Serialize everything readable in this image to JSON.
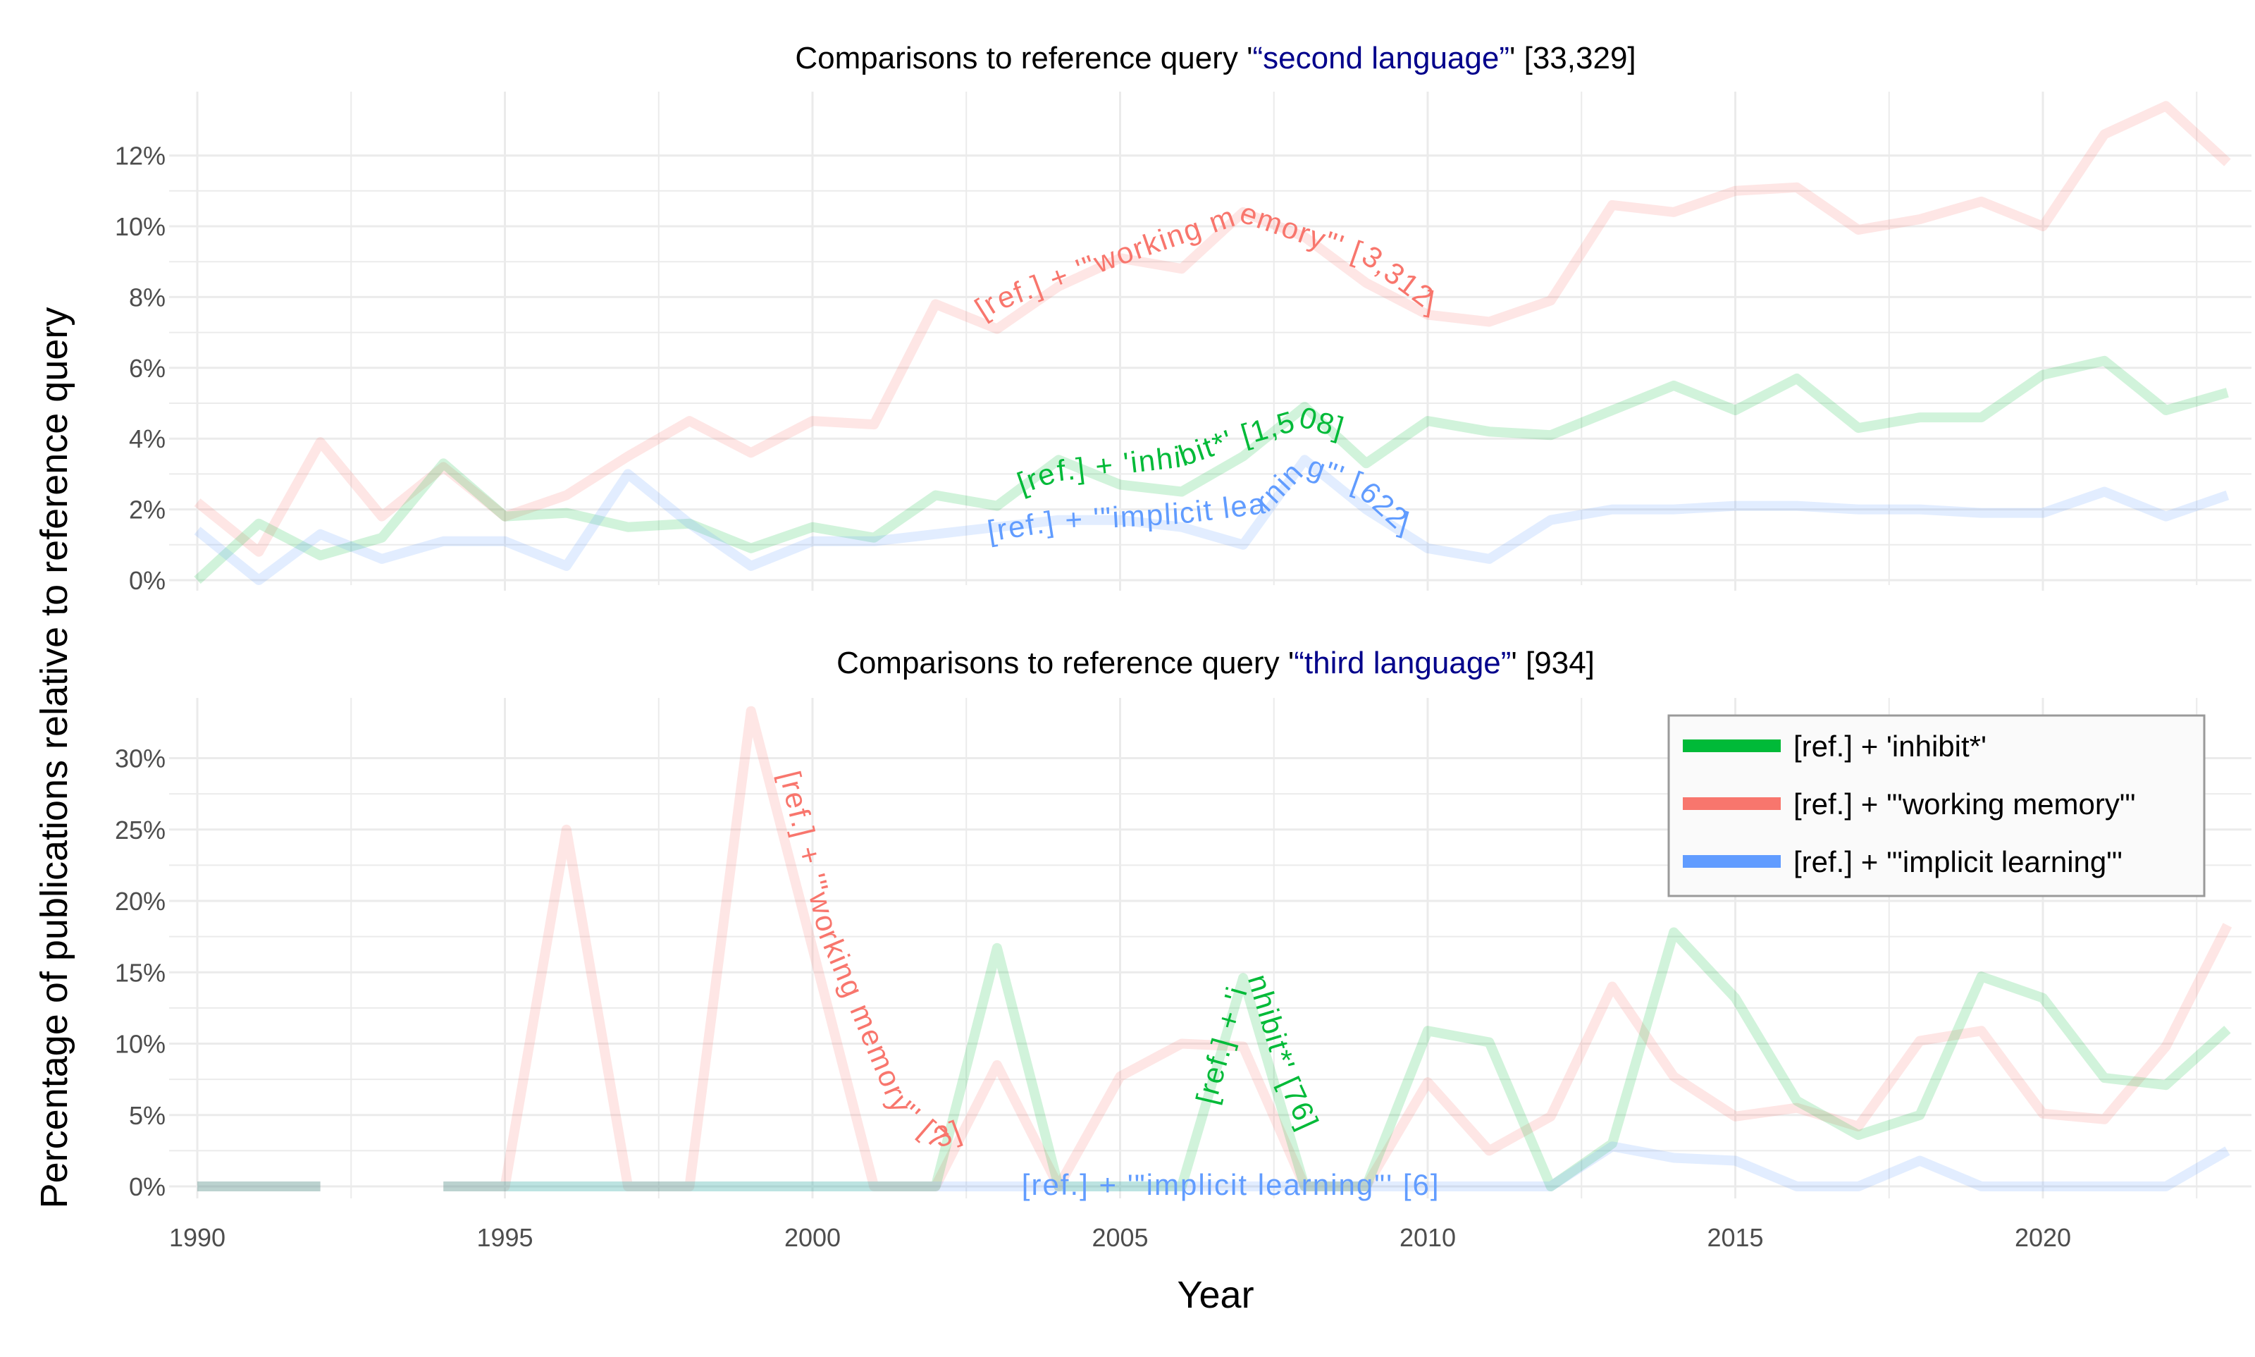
{
  "chart_data": {
    "type": "line",
    "xlabel": "Year",
    "ylabel": "Percentage of publications relative to reference query",
    "x_ticks": [
      "1990",
      "1995",
      "2000",
      "2005",
      "2010",
      "2015",
      "2020"
    ],
    "xlim": [
      1990,
      2023
    ],
    "legend_position": "top-right",
    "colors": {
      "inhibit": "#00BA38",
      "working_memory": "#F8766D",
      "implicit_learning": "#619CFF",
      "title_highlight": "#00008B"
    },
    "legend": [
      {
        "key": "inhibit",
        "label": "[ref.] + 'inhibit*'"
      },
      {
        "key": "working_memory",
        "label": "[ref.] + '\"working memory\"'"
      },
      {
        "key": "implicit_learning",
        "label": "[ref.] + '\"implicit learning\"'"
      }
    ],
    "panels": [
      {
        "title_prefix": "Comparisons to reference query '",
        "title_highlight": "“second language”",
        "title_suffix": "' [33,329]",
        "ylim": [
          0,
          13.5
        ],
        "y_ticks": [
          0,
          2,
          4,
          6,
          8,
          10,
          12
        ],
        "y_tick_labels": [
          "0%",
          "2%",
          "4%",
          "6%",
          "8%",
          "10%",
          "12%"
        ],
        "series": [
          {
            "key": "working_memory",
            "points": [
              [
                1990,
                2.2
              ],
              [
                1991,
                0.8
              ],
              [
                1992,
                3.9
              ],
              [
                1993,
                1.8
              ],
              [
                1994,
                3.2
              ],
              [
                1995,
                1.8
              ],
              [
                1996,
                2.4
              ],
              [
                1997,
                3.5
              ],
              [
                1998,
                4.5
              ],
              [
                1999,
                3.6
              ],
              [
                2000,
                4.5
              ],
              [
                2001,
                4.4
              ],
              [
                2002,
                7.8
              ],
              [
                2003,
                7.1
              ],
              [
                2004,
                8.3
              ],
              [
                2005,
                9.1
              ],
              [
                2006,
                8.8
              ],
              [
                2007,
                10.4
              ],
              [
                2008,
                9.7
              ],
              [
                2009,
                8.4
              ],
              [
                2010,
                7.5
              ],
              [
                2011,
                7.3
              ],
              [
                2012,
                7.9
              ],
              [
                2013,
                10.6
              ],
              [
                2014,
                10.4
              ],
              [
                2015,
                11.0
              ],
              [
                2016,
                11.1
              ],
              [
                2017,
                9.9
              ],
              [
                2018,
                10.2
              ],
              [
                2019,
                10.7
              ],
              [
                2020,
                10.0
              ],
              [
                2021,
                12.6
              ],
              [
                2022,
                13.4
              ],
              [
                2023,
                11.8
              ]
            ]
          },
          {
            "key": "inhibit",
            "points": [
              [
                1990,
                0.0
              ],
              [
                1991,
                1.6
              ],
              [
                1992,
                0.7
              ],
              [
                1993,
                1.2
              ],
              [
                1994,
                3.3
              ],
              [
                1995,
                1.8
              ],
              [
                1996,
                1.9
              ],
              [
                1997,
                1.5
              ],
              [
                1998,
                1.6
              ],
              [
                1999,
                0.9
              ],
              [
                2000,
                1.5
              ],
              [
                2001,
                1.2
              ],
              [
                2002,
                2.4
              ],
              [
                2003,
                2.1
              ],
              [
                2004,
                3.4
              ],
              [
                2005,
                2.7
              ],
              [
                2006,
                2.5
              ],
              [
                2007,
                3.5
              ],
              [
                2008,
                4.9
              ],
              [
                2009,
                3.3
              ],
              [
                2010,
                4.5
              ],
              [
                2011,
                4.2
              ],
              [
                2012,
                4.1
              ],
              [
                2013,
                4.8
              ],
              [
                2014,
                5.5
              ],
              [
                2015,
                4.8
              ],
              [
                2016,
                5.7
              ],
              [
                2017,
                4.3
              ],
              [
                2018,
                4.6
              ],
              [
                2019,
                4.6
              ],
              [
                2020,
                5.8
              ],
              [
                2021,
                6.2
              ],
              [
                2022,
                4.8
              ],
              [
                2023,
                5.3
              ]
            ]
          },
          {
            "key": "implicit_learning",
            "points": [
              [
                1990,
                1.4
              ],
              [
                1991,
                0.0
              ],
              [
                1992,
                1.3
              ],
              [
                1993,
                0.6
              ],
              [
                1994,
                1.1
              ],
              [
                1995,
                1.1
              ],
              [
                1996,
                0.4
              ],
              [
                1997,
                3.0
              ],
              [
                1998,
                1.6
              ],
              [
                1999,
                0.4
              ],
              [
                2000,
                1.1
              ],
              [
                2001,
                1.1
              ],
              [
                2002,
                1.3
              ],
              [
                2003,
                1.5
              ],
              [
                2004,
                1.7
              ],
              [
                2005,
                1.7
              ],
              [
                2006,
                1.5
              ],
              [
                2007,
                1.0
              ],
              [
                2008,
                3.4
              ],
              [
                2009,
                2.0
              ],
              [
                2010,
                0.9
              ],
              [
                2011,
                0.6
              ],
              [
                2012,
                1.7
              ],
              [
                2013,
                2.0
              ],
              [
                2014,
                2.0
              ],
              [
                2015,
                2.1
              ],
              [
                2016,
                2.1
              ],
              [
                2017,
                2.0
              ],
              [
                2018,
                2.0
              ],
              [
                2019,
                1.9
              ],
              [
                2020,
                1.9
              ],
              [
                2021,
                2.5
              ],
              [
                2022,
                1.8
              ],
              [
                2023,
                2.4
              ]
            ]
          }
        ],
        "labels": [
          {
            "key": "working_memory",
            "text": "[ref.] + '\"working memory\"' [3,312]"
          },
          {
            "key": "inhibit",
            "text": "[ref.] + 'inhibit*' [1,508]"
          },
          {
            "key": "implicit_learning",
            "text": "[ref.] + '\"implicit learning\"' [622]"
          }
        ]
      },
      {
        "title_prefix": "Comparisons to reference query '",
        "title_highlight": "“third language”",
        "title_suffix": "' [934]",
        "ylim": [
          -0.8,
          33.5
        ],
        "y_ticks": [
          0,
          5,
          10,
          15,
          20,
          25,
          30
        ],
        "y_tick_labels": [
          "0%",
          "5%",
          "10%",
          "15%",
          "20%",
          "25%",
          "30%"
        ],
        "series": [
          {
            "key": "working_memory",
            "segments": [
              [
                [
                  1990,
                  0
                ],
                [
                  1991,
                  0
                ],
                [
                  1992,
                  0
                ]
              ],
              [
                [
                  1994,
                  0
                ],
                [
                  1995,
                  0
                ],
                [
                  1996,
                  25.0
                ],
                [
                  1997,
                  0
                ],
                [
                  1998,
                  0
                ],
                [
                  1999,
                  33.3
                ],
                [
                  2000,
                  16.7
                ],
                [
                  2001,
                  0
                ],
                [
                  2002,
                  0
                ],
                [
                  2003,
                  8.5
                ],
                [
                  2004,
                  0
                ],
                [
                  2005,
                  7.7
                ],
                [
                  2006,
                  10.0
                ],
                [
                  2007,
                  9.8
                ],
                [
                  2008,
                  0
                ],
                [
                  2009,
                  0
                ],
                [
                  2010,
                  7.3
                ],
                [
                  2011,
                  2.5
                ],
                [
                  2012,
                  4.9
                ],
                [
                  2013,
                  14.0
                ],
                [
                  2014,
                  7.7
                ],
                [
                  2015,
                  4.9
                ],
                [
                  2016,
                  5.5
                ],
                [
                  2017,
                  4.2
                ],
                [
                  2018,
                  10.2
                ],
                [
                  2019,
                  10.9
                ],
                [
                  2020,
                  5.1
                ],
                [
                  2021,
                  4.7
                ],
                [
                  2022,
                  9.8
                ],
                [
                  2023,
                  18.3
                ]
              ]
            ]
          },
          {
            "key": "inhibit",
            "segments": [
              [
                [
                  1990,
                  0
                ],
                [
                  1991,
                  0
                ],
                [
                  1992,
                  0
                ]
              ],
              [
                [
                  1994,
                  0
                ],
                [
                  1995,
                  0
                ],
                [
                  1996,
                  0
                ],
                [
                  1997,
                  0
                ],
                [
                  1998,
                  0
                ],
                [
                  1999,
                  0
                ],
                [
                  2000,
                  0
                ],
                [
                  2001,
                  0
                ],
                [
                  2002,
                  0
                ],
                [
                  2003,
                  16.7
                ],
                [
                  2004,
                  0
                ],
                [
                  2005,
                  0
                ],
                [
                  2006,
                  0
                ],
                [
                  2007,
                  14.6
                ],
                [
                  2008,
                  0
                ],
                [
                  2009,
                  0
                ],
                [
                  2010,
                  10.9
                ],
                [
                  2011,
                  10.1
                ],
                [
                  2012,
                  0
                ],
                [
                  2013,
                  3.0
                ],
                [
                  2014,
                  17.8
                ],
                [
                  2015,
                  13.2
                ],
                [
                  2016,
                  6.0
                ],
                [
                  2017,
                  3.6
                ],
                [
                  2018,
                  5.0
                ],
                [
                  2019,
                  14.7
                ],
                [
                  2020,
                  13.2
                ],
                [
                  2021,
                  7.6
                ],
                [
                  2022,
                  7.1
                ],
                [
                  2023,
                  11.0
                ]
              ]
            ]
          },
          {
            "key": "implicit_learning",
            "segments": [
              [
                [
                  1990,
                  0
                ],
                [
                  1991,
                  0
                ],
                [
                  1992,
                  0
                ]
              ],
              [
                [
                  1994,
                  0
                ],
                [
                  1995,
                  0
                ],
                [
                  1996,
                  0
                ],
                [
                  1997,
                  0
                ],
                [
                  1998,
                  0
                ],
                [
                  1999,
                  0
                ],
                [
                  2000,
                  0
                ],
                [
                  2001,
                  0
                ],
                [
                  2002,
                  0
                ],
                [
                  2003,
                  0
                ],
                [
                  2004,
                  0
                ],
                [
                  2005,
                  0
                ],
                [
                  2006,
                  0
                ],
                [
                  2007,
                  0
                ],
                [
                  2008,
                  0
                ],
                [
                  2009,
                  0
                ],
                [
                  2010,
                  0
                ],
                [
                  2011,
                  0
                ],
                [
                  2012,
                  0
                ],
                [
                  2013,
                  2.8
                ],
                [
                  2014,
                  2.0
                ],
                [
                  2015,
                  1.8
                ],
                [
                  2016,
                  0
                ],
                [
                  2017,
                  0
                ],
                [
                  2018,
                  1.8
                ],
                [
                  2019,
                  0
                ],
                [
                  2020,
                  0
                ],
                [
                  2021,
                  0
                ],
                [
                  2022,
                  0
                ],
                [
                  2023,
                  2.5
                ]
              ]
            ]
          }
        ],
        "labels": [
          {
            "key": "working_memory",
            "text": "[ref.] + '\"working memory\"' [73]"
          },
          {
            "key": "inhibit",
            "text": "[ref.] + 'inhibit*' [76]"
          },
          {
            "key": "implicit_learning",
            "text": "[ref.] + '\"implicit learning\"' [6]"
          }
        ]
      }
    ]
  }
}
